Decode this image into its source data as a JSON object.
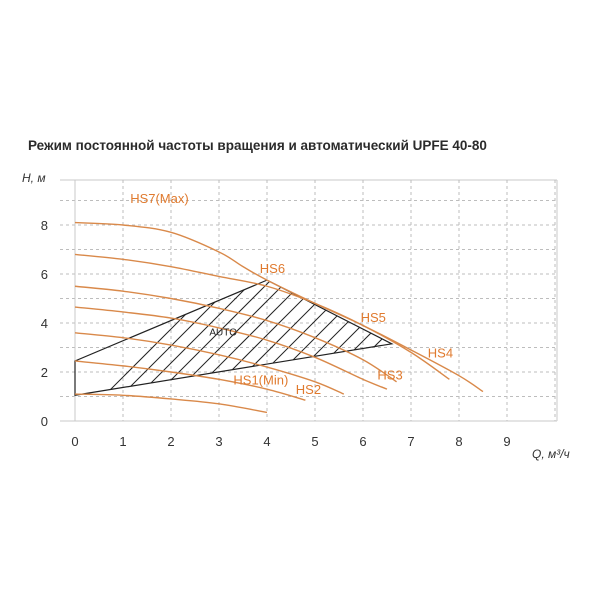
{
  "chart_data": {
    "type": "line",
    "title": "Режим постоянной частоты вращения и автоматический  UPFE 40-80",
    "xlabel": "Q, м³/ч",
    "ylabel": "H, м",
    "xlim": [
      0,
      10
    ],
    "ylim": [
      0,
      10
    ],
    "x_ticks": [
      "0",
      "1",
      "2",
      "3",
      "4",
      "5",
      "6",
      "7",
      "8",
      "9"
    ],
    "y_ticks": [
      "0",
      "2",
      "4",
      "6",
      "8"
    ],
    "grid": "dashed",
    "curve_color": "#d9894a",
    "label_color": "#e07a2e",
    "series": [
      {
        "name": "HS7(Max)",
        "x": [
          0,
          1,
          2,
          3,
          3.5,
          4,
          5,
          6,
          7,
          8,
          8.5
        ],
        "y": [
          8.1,
          8.0,
          7.7,
          6.9,
          6.3,
          5.75,
          4.8,
          3.9,
          2.9,
          1.85,
          1.2
        ]
      },
      {
        "name": "HS6",
        "x": [
          0,
          1,
          2,
          3,
          4,
          5,
          6,
          7,
          7.8
        ],
        "y": [
          6.8,
          6.6,
          6.3,
          5.9,
          5.5,
          4.8,
          3.9,
          2.8,
          1.7
        ]
      },
      {
        "name": "HS5",
        "x": [
          0,
          1,
          2,
          3,
          4,
          5,
          6,
          6.7
        ],
        "y": [
          5.5,
          5.3,
          5.0,
          4.6,
          4.1,
          3.4,
          2.5,
          1.6
        ]
      },
      {
        "name": "HS4",
        "x": [
          0,
          1,
          2,
          3,
          4,
          5,
          6,
          6.5
        ],
        "y": [
          4.65,
          4.45,
          4.2,
          3.8,
          3.3,
          2.6,
          1.7,
          1.3
        ]
      },
      {
        "name": "HS3",
        "x": [
          0,
          1,
          2,
          3,
          4,
          5,
          5.6
        ],
        "y": [
          3.6,
          3.4,
          3.1,
          2.7,
          2.2,
          1.6,
          1.1
        ]
      },
      {
        "name": "HS2",
        "x": [
          0,
          1,
          2,
          3,
          4,
          4.8
        ],
        "y": [
          2.45,
          2.25,
          2.0,
          1.7,
          1.3,
          0.85
        ]
      },
      {
        "name": "HS1(Min)",
        "x": [
          0,
          1,
          2,
          3,
          4
        ],
        "y": [
          1.1,
          1.05,
          0.9,
          0.7,
          0.35
        ]
      }
    ],
    "auto_region": {
      "label": "AUTO",
      "polygon": [
        [
          0,
          1.05
        ],
        [
          0,
          2.45
        ],
        [
          4,
          5.75
        ],
        [
          6.6,
          3.15
        ]
      ]
    },
    "series_labels": [
      {
        "name": "HS7(Max)",
        "x": 1.15,
        "y": 8.9
      },
      {
        "name": "HS6",
        "x": 3.85,
        "y": 6.05
      },
      {
        "name": "HS5",
        "x": 5.95,
        "y": 4.05
      },
      {
        "name": "HS4",
        "x": 7.35,
        "y": 2.6
      },
      {
        "name": "HS3",
        "x": 6.3,
        "y": 1.7
      },
      {
        "name": "HS2",
        "x": 4.6,
        "y": 1.1
      },
      {
        "name": "HS1(Min)",
        "x": 3.3,
        "y": 1.5
      }
    ],
    "auto_label_pos": {
      "x": 2.8,
      "y": 3.5
    }
  }
}
